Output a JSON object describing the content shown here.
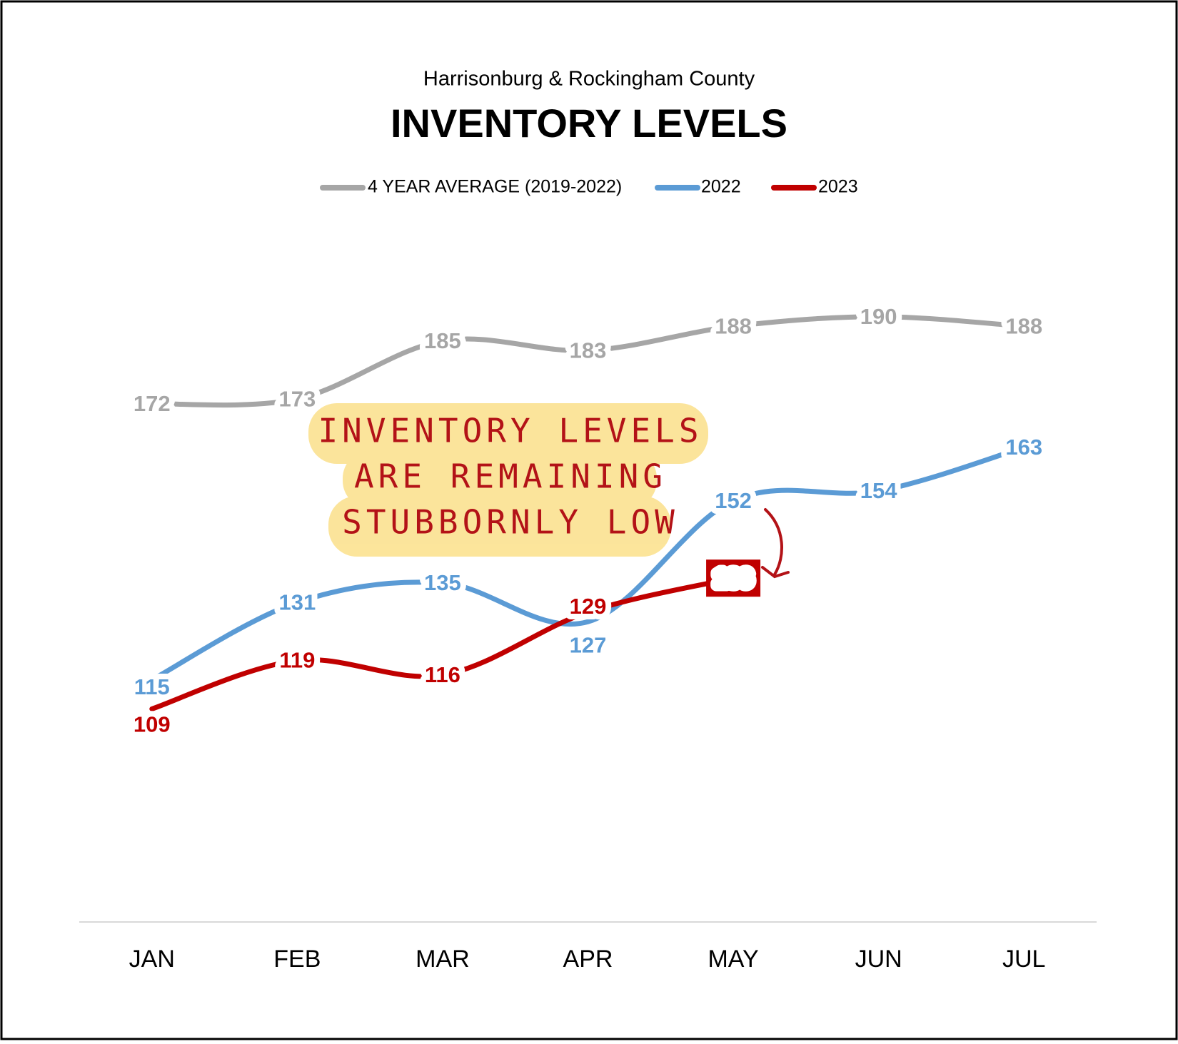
{
  "chart_data": {
    "type": "line",
    "subtitle": "Harrisonburg & Rockingham County",
    "title": "INVENTORY LEVELS",
    "categories": [
      "JAN",
      "FEB",
      "MAR",
      "APR",
      "MAY",
      "JUN",
      "JUL"
    ],
    "series": [
      {
        "name": "4 YEAR AVERAGE (2019-2022)",
        "color": "#a6a6a6",
        "values": [
          172,
          173,
          185,
          183,
          188,
          190,
          188
        ]
      },
      {
        "name": "2022",
        "color": "#5b9bd5",
        "values": [
          115,
          131,
          135,
          127,
          152,
          154,
          163
        ]
      },
      {
        "name": "2023",
        "color": "#c00000",
        "values": [
          109,
          119,
          116,
          129,
          136,
          null,
          null
        ]
      }
    ],
    "ylim": [
      65,
      210
    ],
    "annotation": [
      "INVENTORY LEVELS",
      "ARE REMAINING",
      "STUBBORNLY LOW"
    ]
  }
}
